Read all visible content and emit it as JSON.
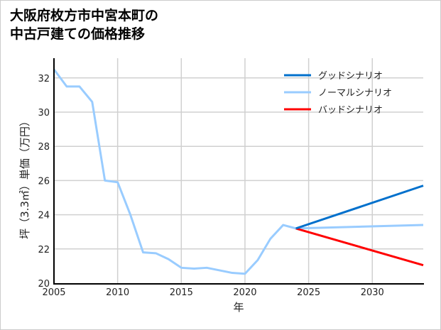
{
  "chart_data": {
    "type": "line",
    "title_lines": [
      "大阪府枚方市中宮本町の",
      "中古戸建ての価格推移"
    ],
    "xlabel": "年",
    "ylabel": "坪（3.3㎡）単価（万円）",
    "xlim": [
      2005,
      2034
    ],
    "ylim": [
      20,
      33
    ],
    "xticks": [
      2005,
      2010,
      2015,
      2020,
      2025,
      2030
    ],
    "yticks": [
      20,
      22,
      24,
      26,
      28,
      30,
      32
    ],
    "grid": true,
    "legend_position": "top-right",
    "historical": {
      "x": [
        2005,
        2006,
        2007,
        2008,
        2009,
        2010,
        2011,
        2012,
        2013,
        2014,
        2015,
        2016,
        2017,
        2018,
        2019,
        2020,
        2021,
        2022,
        2023,
        2024
      ],
      "y": [
        32.5,
        31.5,
        31.5,
        30.6,
        26.0,
        25.9,
        24.0,
        21.8,
        21.75,
        21.4,
        20.9,
        20.85,
        20.9,
        20.75,
        20.6,
        20.55,
        21.35,
        22.6,
        23.4,
        23.2
      ],
      "color": "#99ccff"
    },
    "series": [
      {
        "name": "グッドシナリオ",
        "x": [
          2024,
          2034
        ],
        "y": [
          23.2,
          25.7
        ],
        "color": "#0070cc"
      },
      {
        "name": "ノーマルシナリオ",
        "x": [
          2024,
          2034
        ],
        "y": [
          23.2,
          23.4
        ],
        "color": "#99ccff"
      },
      {
        "name": "バッドシナリオ",
        "x": [
          2024,
          2034
        ],
        "y": [
          23.2,
          21.05
        ],
        "color": "#ff0000"
      }
    ]
  }
}
